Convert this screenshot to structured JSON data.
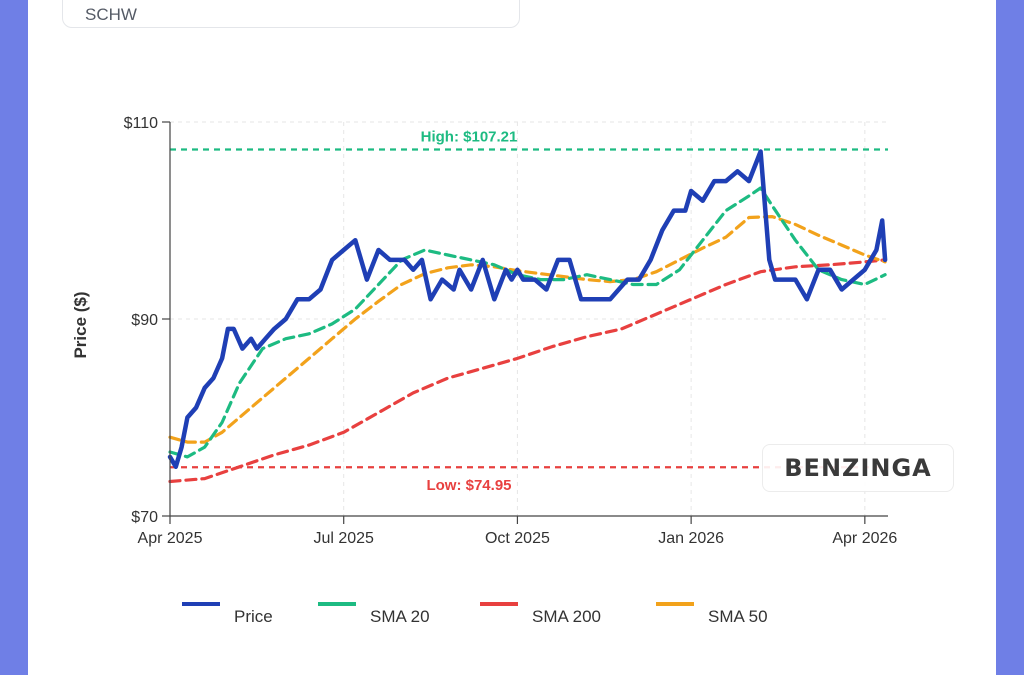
{
  "header": {
    "ticker": "SCHW"
  },
  "watermark": {
    "text": "BENZINGA"
  },
  "chart_data": {
    "type": "line",
    "title": "",
    "xlabel": "",
    "ylabel": "Price ($)",
    "ylim": [
      70,
      110
    ],
    "y_ticks": [
      70,
      90,
      110
    ],
    "y_tick_labels": [
      "$70",
      "$90",
      "$110"
    ],
    "x_range": [
      0,
      12.4
    ],
    "x_ticks": [
      0,
      3,
      6,
      9,
      12
    ],
    "x_tick_labels": [
      "Apr 2025",
      "Jul 2025",
      "Oct 2025",
      "Jan 2026",
      "Apr 2026"
    ],
    "grid": true,
    "legend": "bottom",
    "reference_lines": [
      {
        "label": "High: $107.21",
        "value": 107.21,
        "color": "#1dbb82"
      },
      {
        "label": "Low: $74.95",
        "value": 74.95,
        "color": "#e8403f"
      }
    ],
    "series": [
      {
        "name": "Price",
        "color": "#1f3fb5",
        "x": [
          0,
          0.1,
          0.2,
          0.3,
          0.45,
          0.6,
          0.75,
          0.9,
          1.0,
          1.1,
          1.25,
          1.4,
          1.5,
          1.65,
          1.8,
          2.0,
          2.2,
          2.4,
          2.6,
          2.8,
          3.0,
          3.2,
          3.4,
          3.6,
          3.8,
          3.9,
          4.05,
          4.2,
          4.35,
          4.5,
          4.7,
          4.9,
          5.0,
          5.2,
          5.4,
          5.6,
          5.8,
          5.9,
          6.0,
          6.1,
          6.3,
          6.5,
          6.7,
          6.9,
          7.1,
          7.3,
          7.6,
          7.9,
          8.1,
          8.3,
          8.5,
          8.7,
          8.9,
          9.0,
          9.2,
          9.4,
          9.6,
          9.8,
          10.0,
          10.2,
          10.35,
          10.45,
          10.55,
          10.65,
          10.8,
          11.0,
          11.2,
          11.4,
          11.6,
          11.8,
          12.0,
          12.2,
          12.3,
          12.35
        ],
        "values": [
          76,
          75,
          77,
          80,
          81,
          83,
          84,
          86,
          89,
          89,
          87,
          88,
          87,
          88,
          89,
          90,
          92,
          92,
          93,
          96,
          97,
          98,
          94,
          97,
          96,
          96,
          96,
          95,
          96,
          92,
          94,
          93,
          95,
          93,
          96,
          92,
          95,
          94,
          95,
          94,
          94,
          93,
          96,
          96,
          92,
          92,
          92,
          94,
          94,
          96,
          99,
          101,
          101,
          103,
          102,
          104,
          104,
          105,
          104,
          107,
          96,
          94,
          94,
          94,
          94,
          92,
          95,
          95,
          93,
          94,
          95,
          97,
          100,
          96
        ]
      },
      {
        "name": "SMA 20",
        "color": "#1dbb82",
        "x": [
          0,
          0.3,
          0.6,
          0.9,
          1.2,
          1.6,
          2.0,
          2.4,
          2.8,
          3.2,
          3.6,
          4.0,
          4.4,
          4.8,
          5.2,
          5.6,
          6.0,
          6.4,
          6.8,
          7.2,
          7.6,
          8.0,
          8.4,
          8.8,
          9.2,
          9.6,
          10.0,
          10.2,
          10.4,
          10.8,
          11.2,
          11.6,
          12.0,
          12.35
        ],
        "values": [
          76.5,
          76,
          77,
          79.5,
          83.5,
          87,
          88,
          88.5,
          89.5,
          91,
          93.5,
          96,
          97,
          96.5,
          96,
          95.5,
          94.5,
          94,
          94,
          94.5,
          94,
          93.5,
          93.5,
          95,
          98,
          101,
          102.5,
          103.3,
          101.5,
          98,
          95,
          94,
          93.5,
          94.5
        ]
      },
      {
        "name": "SMA 200",
        "color": "#e8403f",
        "x": [
          0,
          0.6,
          1.2,
          1.8,
          2.4,
          3.0,
          3.6,
          4.2,
          4.8,
          5.4,
          6.0,
          6.6,
          7.2,
          7.8,
          8.4,
          9.0,
          9.6,
          10.2,
          10.8,
          11.4,
          12.0,
          12.35
        ],
        "values": [
          73.5,
          73.8,
          75,
          76.2,
          77.2,
          78.5,
          80.5,
          82.5,
          84,
          85,
          86,
          87.2,
          88.2,
          89,
          90.5,
          92,
          93.5,
          94.8,
          95.3,
          95.5,
          95.8,
          96
        ]
      },
      {
        "name": "SMA 50",
        "color": "#f2a21b",
        "x": [
          0,
          0.3,
          0.6,
          0.9,
          1.2,
          1.6,
          2.0,
          2.4,
          2.8,
          3.2,
          3.6,
          4.0,
          4.4,
          4.8,
          5.2,
          5.6,
          6.0,
          6.4,
          6.8,
          7.2,
          7.6,
          8.0,
          8.4,
          8.8,
          9.2,
          9.6,
          10.0,
          10.4,
          10.8,
          11.2,
          11.6,
          12.0,
          12.35
        ],
        "values": [
          78,
          77.5,
          77.5,
          78.5,
          80,
          82,
          84,
          86,
          88,
          90,
          91.8,
          93.5,
          94.6,
          95.2,
          95.5,
          95.3,
          94.9,
          94.6,
          94.3,
          94,
          93.8,
          94,
          94.8,
          96,
          97.2,
          98.3,
          100.3,
          100.4,
          99.6,
          98.5,
          97.5,
          96.5,
          95.8
        ]
      }
    ]
  }
}
